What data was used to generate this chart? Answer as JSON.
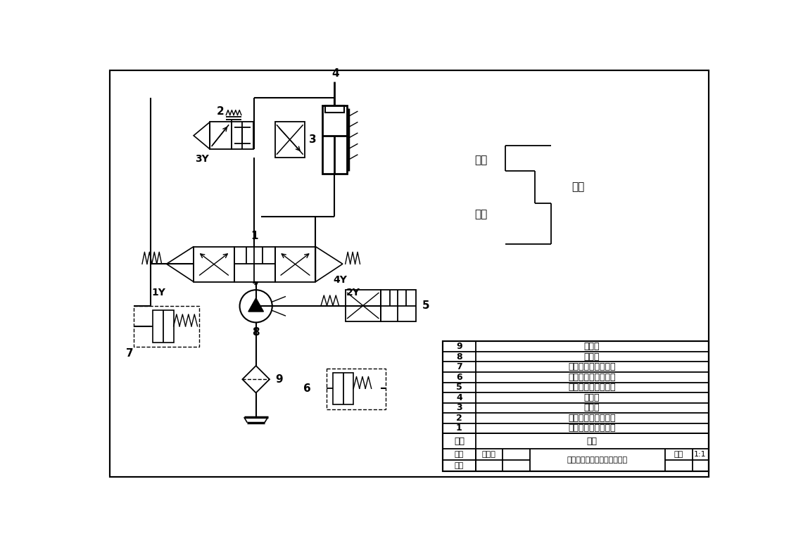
{
  "line_color": "#000000",
  "table_rows_ordered": [
    [
      "9",
      "过滤器"
    ],
    [
      "8",
      "液压泵"
    ],
    [
      "7",
      "溢流阀（当背压阀）"
    ],
    [
      "6",
      "溢流阀（当背压阀）"
    ],
    [
      "5",
      "二位三通电磁换向阀"
    ],
    [
      "4",
      "液压缸"
    ],
    [
      "3",
      "调速阀"
    ],
    [
      "2",
      "二位二通电磁换向阀"
    ],
    [
      "1",
      "三位四通电磁换向阀"
    ]
  ],
  "footer_zhi_tu": "制图",
  "footer_name": "王珊栖",
  "footer_shen_he": "审核",
  "footer_title": "锓床液压进给系统控制原理图",
  "footer_scale": "1:1",
  "label_1": "1",
  "label_2": "2",
  "label_3": "3",
  "label_4": "4",
  "label_5": "5",
  "label_6": "6",
  "label_7": "7",
  "label_8": "8",
  "label_9": "9",
  "label_1Y": "1Y",
  "label_2Y": "2Y",
  "label_3Y": "3Y",
  "label_4Y": "4Y",
  "label_kuaijin": "快进",
  "label_gongjin": "工进",
  "label_kuaitui": "快退",
  "header_xuhao": "序号",
  "header_mingcheng": "名称",
  "bili": "比例"
}
